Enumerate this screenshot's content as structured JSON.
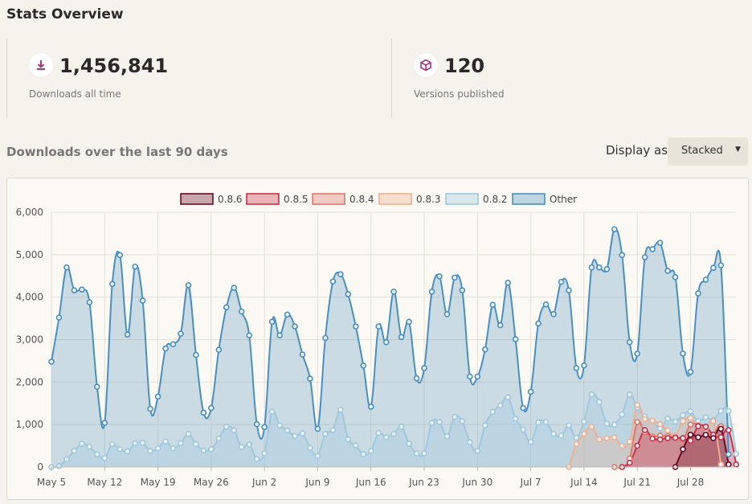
{
  "page": {
    "title": "Stats Overview"
  },
  "stats": [
    {
      "icon": "download-icon",
      "value": "1,456,841",
      "label": "Downloads all time"
    },
    {
      "icon": "package-icon",
      "value": "120",
      "label": "Versions published"
    }
  ],
  "section_title": "Downloads over the last 90 days",
  "display_as": {
    "label": "Display as",
    "selected": "Stacked"
  },
  "colors": {
    "other": "#4b8fbf",
    "v082": "#9fc7de",
    "v083": "#f0b08f",
    "v084": "#e0756a",
    "v085": "#c8304a",
    "v086": "#6a0a22",
    "icon_accent": "#a0367a"
  },
  "chart_data": {
    "type": "area",
    "stacked": true,
    "title": "",
    "xlabel": "",
    "ylabel": "",
    "ylim": [
      0,
      6000
    ],
    "yticks": [
      "0",
      "1,000",
      "2,000",
      "3,000",
      "4,000",
      "5,000",
      "6,000"
    ],
    "xtick_labels": [
      {
        "label": "May 5",
        "day": 0
      },
      {
        "label": "May 12",
        "day": 7
      },
      {
        "label": "May 19",
        "day": 14
      },
      {
        "label": "May 26",
        "day": 21
      },
      {
        "label": "Jun 2",
        "day": 28
      },
      {
        "label": "Jun 9",
        "day": 35
      },
      {
        "label": "Jun 16",
        "day": 42
      },
      {
        "label": "Jun 23",
        "day": 49
      },
      {
        "label": "Jun 30",
        "day": 56
      },
      {
        "label": "Jul 7",
        "day": 63
      },
      {
        "label": "Jul 14",
        "day": 70
      },
      {
        "label": "Jul 21",
        "day": 77
      },
      {
        "label": "Jul 28",
        "day": 84
      }
    ],
    "grid": true,
    "legend_position": "top",
    "series": [
      {
        "name": "0.8.6",
        "key": "v086",
        "start": 82,
        "cumulative": [
          0,
          420,
          760,
          700,
          760,
          680,
          900,
          60
        ]
      },
      {
        "name": "0.8.5",
        "key": "v085",
        "start": 75,
        "cumulative": [
          0,
          100,
          500,
          870,
          670,
          650,
          680,
          690,
          680,
          620,
          960,
          950,
          760,
          700,
          870,
          60
        ]
      },
      {
        "name": "0.8.4",
        "key": "v084",
        "start": 74,
        "cumulative": [
          0,
          0,
          200,
          1060,
          820,
          720,
          740,
          730,
          700,
          650,
          1000,
          980,
          820,
          760,
          960,
          60
        ]
      },
      {
        "name": "0.8.3",
        "key": "v083",
        "start": 68,
        "cumulative": [
          0,
          540,
          780,
          950,
          650,
          680,
          700,
          500,
          600,
          1460,
          1130,
          1090,
          1010,
          860,
          740,
          1080,
          1150,
          960,
          880,
          1080,
          60
        ]
      },
      {
        "name": "0.8.2",
        "key": "v082",
        "start": 0,
        "cumulative": [
          0,
          20,
          180,
          380,
          550,
          480,
          300,
          210,
          540,
          420,
          370,
          560,
          570,
          380,
          440,
          600,
          440,
          560,
          780,
          540,
          390,
          420,
          670,
          950,
          860,
          470,
          530,
          190,
          320,
          1300,
          980,
          860,
          730,
          790,
          450,
          260,
          780,
          870,
          1350,
          650,
          510,
          300,
          380,
          800,
          700,
          780,
          950,
          550,
          320,
          320,
          1040,
          1060,
          720,
          1180,
          1080,
          580,
          380,
          980,
          1300,
          1450,
          1640,
          1140,
          880,
          590,
          1050,
          1060,
          780,
          740,
          980,
          690,
          1070,
          1710,
          1530,
          1020,
          1000,
          1240,
          1710,
          1400,
          1190,
          1090,
          910,
          1140,
          1070,
          1220,
          1310,
          1080,
          1170,
          1110,
          1320,
          1320,
          310
        ]
      },
      {
        "name": "Other",
        "key": "other",
        "start": 0,
        "cumulative": [
          2480,
          3520,
          4700,
          4160,
          4180,
          3880,
          1890,
          1040,
          4310,
          4990,
          3120,
          4720,
          3920,
          1370,
          1660,
          2790,
          2890,
          3140,
          4280,
          2640,
          1280,
          1390,
          2760,
          3760,
          4220,
          3660,
          3100,
          1010,
          940,
          3420,
          3100,
          3590,
          3310,
          2650,
          2080,
          900,
          3040,
          4370,
          4540,
          4070,
          3310,
          2390,
          1420,
          3310,
          2940,
          4130,
          3060,
          3420,
          2090,
          2330,
          4130,
          4490,
          3600,
          4460,
          4160,
          2130,
          2130,
          2770,
          3820,
          3340,
          4340,
          3010,
          1390,
          1770,
          3380,
          3830,
          3600,
          4360,
          4160,
          2330,
          2390,
          4700,
          4700,
          4660,
          5600,
          4990,
          2940,
          2670,
          4940,
          5130,
          5280,
          4620,
          4470,
          2670,
          2240,
          4090,
          4410,
          4690,
          4750,
          300
        ]
      }
    ]
  }
}
